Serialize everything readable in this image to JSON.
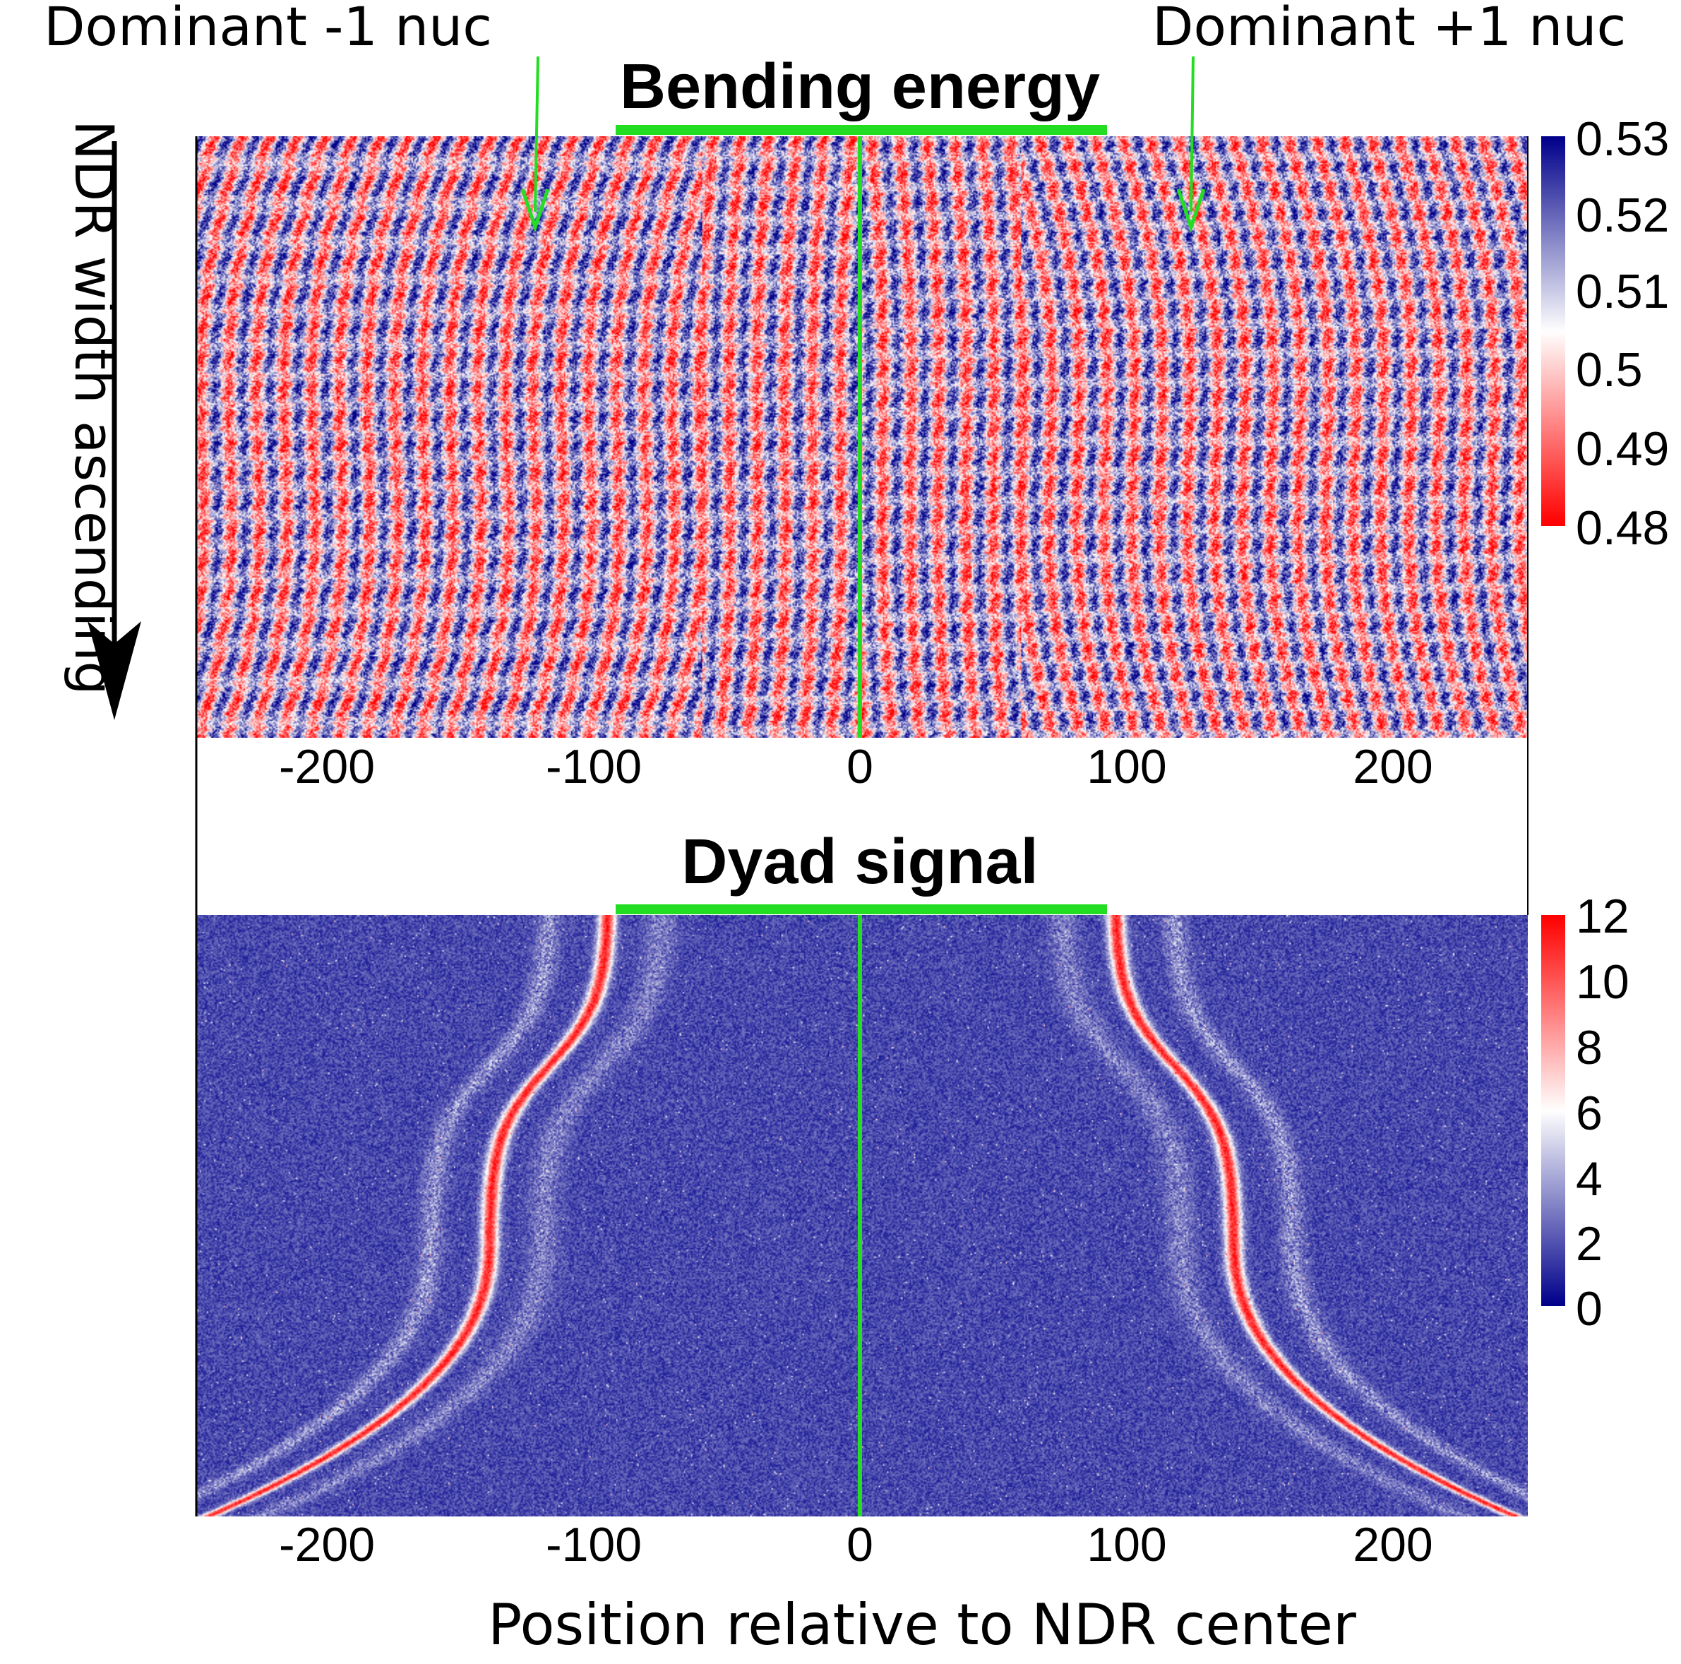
{
  "annotations": {
    "left": "Dominant -1 nuc",
    "right": "Dominant +1 nuc"
  },
  "axis": {
    "xlabel": "Position relative to NDR center",
    "ylabel": "NDR width ascending"
  },
  "colors": {
    "low": "#ff0000",
    "mid": "#ffffff",
    "high": "#00008b",
    "marker": "#22dd22",
    "arrow": "#000000"
  },
  "chart_data": [
    {
      "type": "heatmap",
      "title": "Bending energy",
      "x_range": [
        -250,
        250
      ],
      "x_ticks": [
        -200,
        -100,
        0,
        100,
        200
      ],
      "x_tick_labels": [
        "-200",
        "-100",
        "0",
        "100",
        "200"
      ],
      "y_order": "NDR width ascending (top to bottom)",
      "colorbar": {
        "min": 0.48,
        "max": 0.53,
        "ticks": [
          0.53,
          0.52,
          0.51,
          0.5,
          0.49,
          0.48
        ],
        "tick_labels": [
          "0.53",
          "0.52",
          "0.51",
          "0.5",
          "0.49",
          "0.48"
        ],
        "scale": "red (low) - white - dark blue (high)"
      },
      "markers": {
        "center_line_x": 0,
        "ndr_bar_x": [
          -93,
          93
        ]
      },
      "annotated_features": [
        {
          "label": "Dominant -1 nuc",
          "x": -123
        },
        {
          "label": "Dominant +1 nuc",
          "x": 123
        }
      ]
    },
    {
      "type": "heatmap",
      "title": "Dyad signal",
      "x_range": [
        -250,
        250
      ],
      "x_ticks": [
        -200,
        -100,
        0,
        100,
        200
      ],
      "x_tick_labels": [
        "-200",
        "-100",
        "0",
        "100",
        "200"
      ],
      "y_order": "NDR width ascending (top to bottom)",
      "colorbar": {
        "min": 0,
        "max": 12,
        "ticks": [
          12,
          10,
          8,
          6,
          4,
          2,
          0
        ],
        "tick_labels": [
          "12",
          "10",
          "8",
          "6",
          "4",
          "2",
          "0"
        ],
        "scale": "dark blue (low) - white - red (high)"
      },
      "markers": {
        "center_line_x": 0,
        "ndr_bar_x": [
          -93,
          93
        ]
      }
    }
  ]
}
